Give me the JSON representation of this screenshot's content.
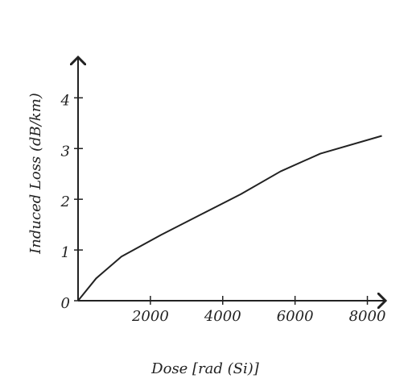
{
  "chart_data": {
    "type": "line",
    "x_label": "Dose [rad (Si)]",
    "y_label": "Induced Loss (dB/km)",
    "x": [
      0,
      500,
      1200,
      2300,
      3400,
      4500,
      5600,
      6700,
      8400
    ],
    "series": [
      {
        "color": "#222222",
        "values": [
          0,
          0.44,
          0.87,
          1.3,
          1.7,
          2.1,
          2.55,
          2.9,
          3.25
        ]
      }
    ],
    "xlim": [
      0,
      8500
    ],
    "ylim": [
      0,
      4.8
    ],
    "xticks": [
      2000,
      4000,
      6000,
      8000
    ],
    "yticks": [
      0,
      1,
      2,
      3,
      4
    ],
    "grid": false
  }
}
